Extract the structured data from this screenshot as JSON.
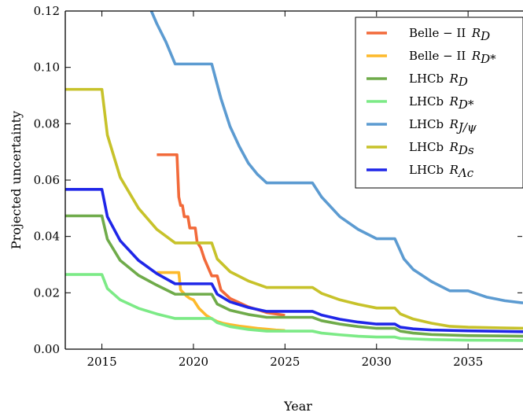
{
  "chart_data": {
    "type": "line",
    "title": "",
    "xlabel": "Year",
    "ylabel": "Projected uncertainty",
    "xlim": [
      2013,
      2038
    ],
    "ylim": [
      0.0,
      0.12
    ],
    "x_ticks": [
      2015,
      2020,
      2025,
      2030,
      2035
    ],
    "x_tick_labels": [
      "2015",
      "2020",
      "2025",
      "2030",
      "2035"
    ],
    "y_ticks": [
      0.0,
      0.02,
      0.04,
      0.06,
      0.08,
      0.1,
      0.12
    ],
    "y_tick_labels": [
      "0.00",
      "0.02",
      "0.04",
      "0.06",
      "0.08",
      "0.10",
      "0.12"
    ],
    "grid": false,
    "legend_position": "top-right",
    "series": [
      {
        "name": "Belle − II  R_D",
        "label_main": "Belle − II",
        "label_sym": "R",
        "label_sub": "D",
        "color": "#f26a3a",
        "points": [
          [
            2018.0,
            0.069
          ],
          [
            2019.1,
            0.069
          ],
          [
            2019.2,
            0.054
          ],
          [
            2019.3,
            0.051
          ],
          [
            2019.4,
            0.051
          ],
          [
            2019.5,
            0.047
          ],
          [
            2019.7,
            0.047
          ],
          [
            2019.8,
            0.043
          ],
          [
            2020.1,
            0.043
          ],
          [
            2020.2,
            0.038
          ],
          [
            2020.4,
            0.036
          ],
          [
            2020.6,
            0.032
          ],
          [
            2020.8,
            0.029
          ],
          [
            2021.0,
            0.026
          ],
          [
            2021.3,
            0.026
          ],
          [
            2021.5,
            0.021
          ],
          [
            2022.0,
            0.018
          ],
          [
            2022.5,
            0.0165
          ],
          [
            2023.0,
            0.015
          ],
          [
            2023.5,
            0.014
          ],
          [
            2024.0,
            0.013
          ],
          [
            2024.5,
            0.0125
          ],
          [
            2025.0,
            0.012
          ]
        ]
      },
      {
        "name": "Belle − II  R_D*",
        "label_main": "Belle − II",
        "label_sym": "R",
        "label_sub": "D*",
        "color": "#fdb92b",
        "points": [
          [
            2018.0,
            0.0272
          ],
          [
            2019.2,
            0.0272
          ],
          [
            2019.3,
            0.021
          ],
          [
            2019.6,
            0.019
          ],
          [
            2019.8,
            0.018
          ],
          [
            2020.0,
            0.0175
          ],
          [
            2020.3,
            0.0145
          ],
          [
            2020.7,
            0.012
          ],
          [
            2021.0,
            0.0108
          ],
          [
            2021.3,
            0.0098
          ],
          [
            2021.6,
            0.0092
          ],
          [
            2022.0,
            0.0087
          ],
          [
            2022.5,
            0.0082
          ],
          [
            2023.0,
            0.0078
          ],
          [
            2023.5,
            0.0074
          ],
          [
            2024.0,
            0.0071
          ],
          [
            2024.5,
            0.0068
          ],
          [
            2025.0,
            0.0066
          ]
        ]
      },
      {
        "name": "LHCb  R_D",
        "label_main": "LHCb",
        "label_sym": "R",
        "label_sub": "D",
        "color": "#6fab4a",
        "points": [
          [
            2013.0,
            0.0473
          ],
          [
            2015.0,
            0.0473
          ],
          [
            2015.3,
            0.039
          ],
          [
            2016.0,
            0.0315
          ],
          [
            2017.0,
            0.0262
          ],
          [
            2018.0,
            0.0227
          ],
          [
            2019.0,
            0.0195
          ],
          [
            2021.0,
            0.0195
          ],
          [
            2021.3,
            0.016
          ],
          [
            2022.0,
            0.0138
          ],
          [
            2023.0,
            0.0123
          ],
          [
            2024.0,
            0.0113
          ],
          [
            2026.5,
            0.0113
          ],
          [
            2027.0,
            0.0101
          ],
          [
            2028.0,
            0.0089
          ],
          [
            2029.0,
            0.008
          ],
          [
            2030.0,
            0.0074
          ],
          [
            2031.0,
            0.0074
          ],
          [
            2031.3,
            0.0064
          ],
          [
            2032.0,
            0.0057
          ],
          [
            2033.0,
            0.0052
          ],
          [
            2035.0,
            0.0048
          ],
          [
            2038.0,
            0.0046
          ]
        ]
      },
      {
        "name": "LHCb  R_D*",
        "label_main": "LHCb",
        "label_sym": "R",
        "label_sub": "D*",
        "color": "#7cea86",
        "points": [
          [
            2013.0,
            0.0265
          ],
          [
            2015.0,
            0.0265
          ],
          [
            2015.3,
            0.0215
          ],
          [
            2016.0,
            0.0175
          ],
          [
            2017.0,
            0.0145
          ],
          [
            2018.0,
            0.0125
          ],
          [
            2019.0,
            0.0109
          ],
          [
            2021.0,
            0.0109
          ],
          [
            2021.3,
            0.0094
          ],
          [
            2022.0,
            0.008
          ],
          [
            2023.0,
            0.007
          ],
          [
            2024.0,
            0.0064
          ],
          [
            2026.5,
            0.0064
          ],
          [
            2027.0,
            0.0057
          ],
          [
            2028.0,
            0.0051
          ],
          [
            2029.0,
            0.0046
          ],
          [
            2030.0,
            0.0043
          ],
          [
            2031.0,
            0.0043
          ],
          [
            2031.3,
            0.0038
          ],
          [
            2033.0,
            0.0034
          ],
          [
            2035.0,
            0.0032
          ],
          [
            2038.0,
            0.0031
          ]
        ]
      },
      {
        "name": "LHCb  R_J/ψ",
        "label_main": "LHCb",
        "label_sym": "R",
        "label_sub": "J/ψ",
        "color": "#5c9bd1",
        "points": [
          [
            2017.7,
            0.12
          ],
          [
            2018.0,
            0.1155
          ],
          [
            2018.5,
            0.109
          ],
          [
            2019.0,
            0.1012
          ],
          [
            2021.0,
            0.1012
          ],
          [
            2021.5,
            0.089
          ],
          [
            2022.0,
            0.079
          ],
          [
            2022.5,
            0.072
          ],
          [
            2023.0,
            0.066
          ],
          [
            2023.5,
            0.062
          ],
          [
            2024.0,
            0.059
          ],
          [
            2026.5,
            0.059
          ],
          [
            2027.0,
            0.054
          ],
          [
            2028.0,
            0.047
          ],
          [
            2029.0,
            0.0425
          ],
          [
            2030.0,
            0.0392
          ],
          [
            2031.0,
            0.0392
          ],
          [
            2031.5,
            0.032
          ],
          [
            2032.0,
            0.0283
          ],
          [
            2033.0,
            0.024
          ],
          [
            2034.0,
            0.0207
          ],
          [
            2035.0,
            0.0207
          ],
          [
            2036.0,
            0.0185
          ],
          [
            2037.0,
            0.0172
          ],
          [
            2038.0,
            0.0164
          ]
        ]
      },
      {
        "name": "LHCb  R_Ds",
        "label_main": "LHCb",
        "label_sym": "R",
        "label_sub": "Ds",
        "color": "#c7c22a",
        "points": [
          [
            2013.0,
            0.0922
          ],
          [
            2015.0,
            0.0922
          ],
          [
            2015.3,
            0.076
          ],
          [
            2016.0,
            0.061
          ],
          [
            2017.0,
            0.05
          ],
          [
            2018.0,
            0.0425
          ],
          [
            2019.0,
            0.0377
          ],
          [
            2021.0,
            0.0377
          ],
          [
            2021.3,
            0.032
          ],
          [
            2022.0,
            0.0275
          ],
          [
            2023.0,
            0.0242
          ],
          [
            2024.0,
            0.0219
          ],
          [
            2026.5,
            0.0219
          ],
          [
            2027.0,
            0.0198
          ],
          [
            2028.0,
            0.0175
          ],
          [
            2029.0,
            0.0159
          ],
          [
            2030.0,
            0.0146
          ],
          [
            2031.0,
            0.0146
          ],
          [
            2031.3,
            0.0125
          ],
          [
            2032.0,
            0.0107
          ],
          [
            2033.0,
            0.0092
          ],
          [
            2034.0,
            0.0081
          ],
          [
            2035.0,
            0.0078
          ],
          [
            2038.0,
            0.0074
          ]
        ]
      },
      {
        "name": "LHCb  R_Λc",
        "label_main": "LHCb",
        "label_sym": "R",
        "label_sub": "Λc",
        "color": "#1f26e8",
        "points": [
          [
            2013.0,
            0.0567
          ],
          [
            2015.0,
            0.0567
          ],
          [
            2015.3,
            0.047
          ],
          [
            2016.0,
            0.0385
          ],
          [
            2017.0,
            0.0315
          ],
          [
            2018.0,
            0.0268
          ],
          [
            2019.0,
            0.0232
          ],
          [
            2021.0,
            0.0232
          ],
          [
            2021.3,
            0.0195
          ],
          [
            2022.0,
            0.0168
          ],
          [
            2023.0,
            0.0148
          ],
          [
            2024.0,
            0.0134
          ],
          [
            2026.5,
            0.0134
          ],
          [
            2027.0,
            0.0121
          ],
          [
            2028.0,
            0.0106
          ],
          [
            2029.0,
            0.0096
          ],
          [
            2030.0,
            0.0089
          ],
          [
            2031.0,
            0.0089
          ],
          [
            2031.3,
            0.0078
          ],
          [
            2032.0,
            0.0072
          ],
          [
            2033.0,
            0.0068
          ],
          [
            2035.0,
            0.0065
          ],
          [
            2038.0,
            0.0062
          ]
        ]
      }
    ]
  }
}
